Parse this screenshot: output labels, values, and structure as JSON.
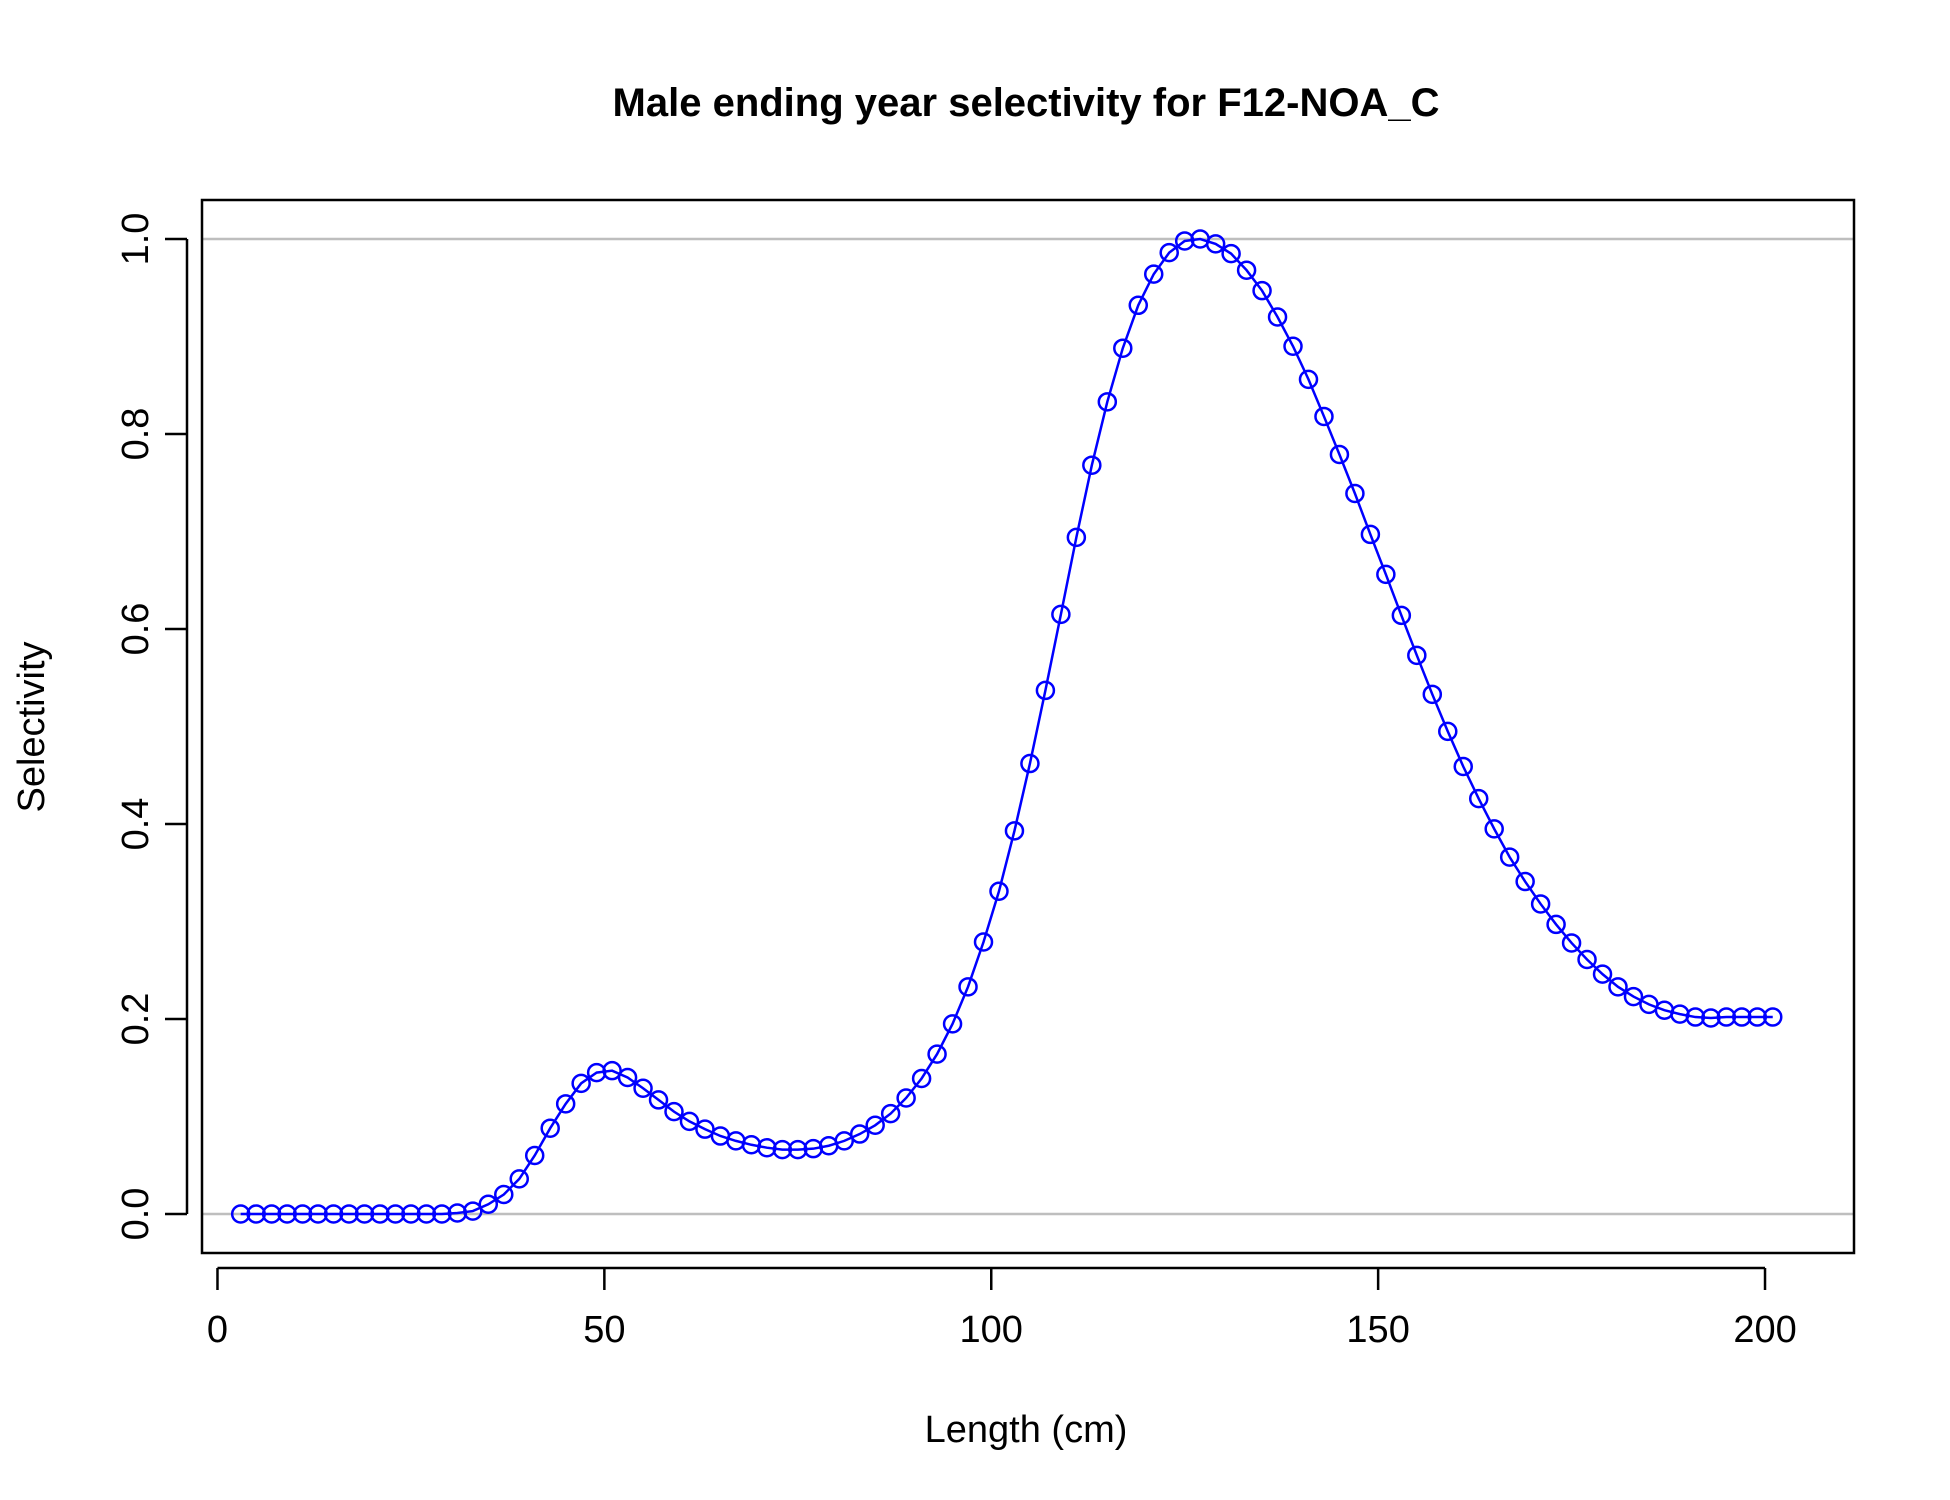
{
  "chart_data": {
    "type": "line",
    "title": "Male ending year selectivity for F12-NOA_C",
    "xlabel": "Length (cm)",
    "ylabel": "Selectivity",
    "xlim": [
      -2,
      211.5
    ],
    "ylim": [
      -0.04,
      1.04
    ],
    "x_ticks": [
      "0",
      "50",
      "100",
      "150",
      "200"
    ],
    "y_ticks": [
      "0.0",
      "0.2",
      "0.4",
      "0.6",
      "0.8",
      "1.0"
    ],
    "reference_lines": [
      0,
      1
    ],
    "grid": false,
    "series": [
      {
        "color": "#0000ff",
        "marker": "open-circle",
        "x": [
          3,
          5,
          7,
          9,
          11,
          13,
          15,
          17,
          19,
          21,
          23,
          25,
          27,
          29,
          31,
          33,
          35,
          37,
          39,
          41,
          43,
          45,
          47,
          49,
          51,
          53,
          55,
          57,
          59,
          61,
          63,
          65,
          67,
          69,
          71,
          73,
          75,
          77,
          79,
          81,
          83,
          85,
          87,
          89,
          91,
          93,
          95,
          97,
          99,
          101,
          103,
          105,
          107,
          109,
          111,
          113,
          115,
          117,
          119,
          121,
          123,
          125,
          127,
          129,
          131,
          133,
          135,
          137,
          139,
          141,
          143,
          145,
          147,
          149,
          151,
          153,
          155,
          157,
          159,
          161,
          163,
          165,
          167,
          169,
          171,
          173,
          175,
          177,
          179,
          181,
          183,
          185,
          187,
          189,
          191,
          193,
          195,
          197,
          199,
          201
        ],
        "y": [
          0,
          0,
          0,
          0,
          0,
          0,
          0,
          0,
          0,
          0,
          0,
          0,
          0,
          0,
          0.001,
          0.003,
          0.01,
          0.02,
          0.036,
          0.06,
          0.088,
          0.113,
          0.134,
          0.145,
          0.147,
          0.14,
          0.129,
          0.117,
          0.105,
          0.095,
          0.087,
          0.08,
          0.075,
          0.071,
          0.068,
          0.066,
          0.066,
          0.067,
          0.07,
          0.075,
          0.082,
          0.091,
          0.103,
          0.119,
          0.139,
          0.164,
          0.195,
          0.233,
          0.279,
          0.331,
          0.393,
          0.462,
          0.537,
          0.615,
          0.694,
          0.768,
          0.833,
          0.888,
          0.932,
          0.964,
          0.986,
          0.998,
          1.0,
          0.995,
          0.985,
          0.968,
          0.947,
          0.92,
          0.89,
          0.856,
          0.818,
          0.779,
          0.739,
          0.697,
          0.656,
          0.614,
          0.573,
          0.533,
          0.495,
          0.459,
          0.426,
          0.395,
          0.366,
          0.341,
          0.318,
          0.297,
          0.278,
          0.261,
          0.246,
          0.233,
          0.223,
          0.215,
          0.209,
          0.205,
          0.202,
          0.201,
          0.202,
          0.202,
          0.202,
          0.202
        ]
      }
    ]
  }
}
